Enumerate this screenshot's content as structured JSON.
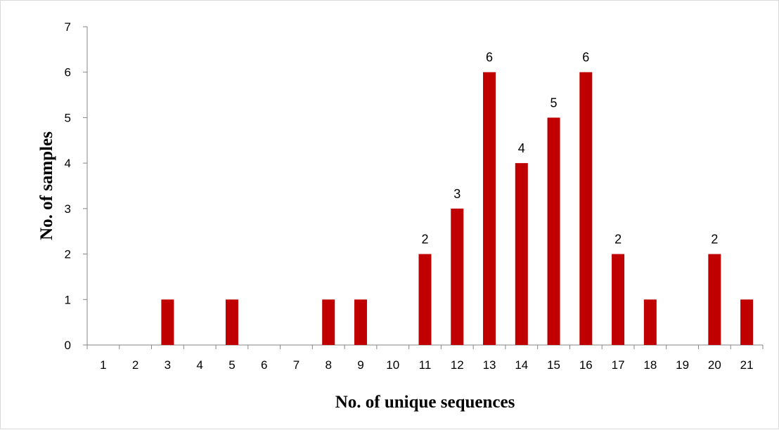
{
  "chart_data": {
    "type": "bar",
    "title": "",
    "xlabel": "No. of unique sequences",
    "ylabel": "No. of samples",
    "categories": [
      "1",
      "2",
      "3",
      "4",
      "5",
      "6",
      "7",
      "8",
      "9",
      "10",
      "11",
      "12",
      "13",
      "14",
      "15",
      "16",
      "17",
      "18",
      "19",
      "20",
      "21"
    ],
    "values": [
      0,
      0,
      1,
      0,
      1,
      0,
      0,
      1,
      1,
      0,
      2,
      3,
      6,
      4,
      5,
      6,
      2,
      1,
      0,
      2,
      1
    ],
    "data_labels": {
      "11": "2",
      "12": "3",
      "13": "6",
      "14": "4",
      "15": "5",
      "16": "6",
      "17": "2",
      "20": "2"
    },
    "ylim": [
      0,
      7
    ],
    "yticks": [
      "0",
      "1",
      "2",
      "3",
      "4",
      "5",
      "6",
      "7"
    ],
    "grid": false,
    "legend": "none",
    "bar_color": "#c00000"
  }
}
